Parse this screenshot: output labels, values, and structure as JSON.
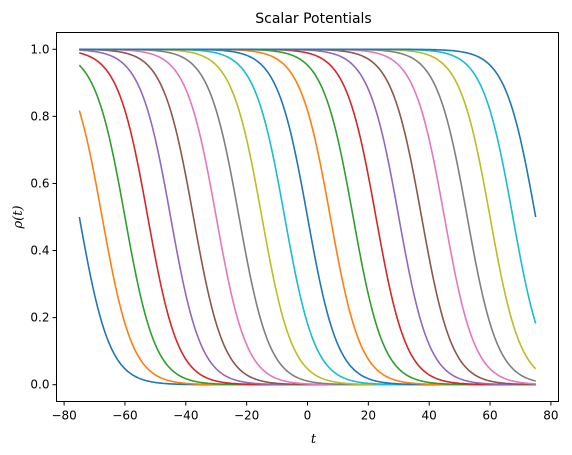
{
  "chart_data": {
    "type": "line",
    "title": "Scalar Potentials",
    "xlabel": "t",
    "ylabel": "ρ(t)",
    "xlim": [
      -82.5,
      82.5
    ],
    "ylim": [
      -0.05,
      1.05
    ],
    "x_range": [
      -75,
      75
    ],
    "xticks": [
      -80,
      -60,
      -40,
      -20,
      0,
      20,
      40,
      60,
      80
    ],
    "xtick_labels": [
      "−80",
      "−60",
      "−40",
      "−20",
      "0",
      "20",
      "40",
      "60",
      "80"
    ],
    "yticks": [
      0.0,
      0.2,
      0.4,
      0.6,
      0.8,
      1.0
    ],
    "ytick_labels": [
      "0.0",
      "0.2",
      "0.4",
      "0.6",
      "0.8",
      "1.0"
    ],
    "grid": false,
    "legend": "none",
    "curve_form": "rho(t) = 1 / (1 + exp((t - t0) / 5))",
    "width": 5,
    "midpoints": [
      -75,
      -67.5,
      -60,
      -52.5,
      -45,
      -37.5,
      -30,
      -22.5,
      -15,
      -7.5,
      0,
      7.5,
      15,
      22.5,
      30,
      37.5,
      45,
      52.5,
      60,
      67.5,
      75
    ],
    "colors": [
      "#1f77b4",
      "#ff7f0e",
      "#2ca02c",
      "#d62728",
      "#9467bd",
      "#8c564b",
      "#e377c2",
      "#7f7f7f",
      "#bcbd22",
      "#17becf"
    ]
  }
}
